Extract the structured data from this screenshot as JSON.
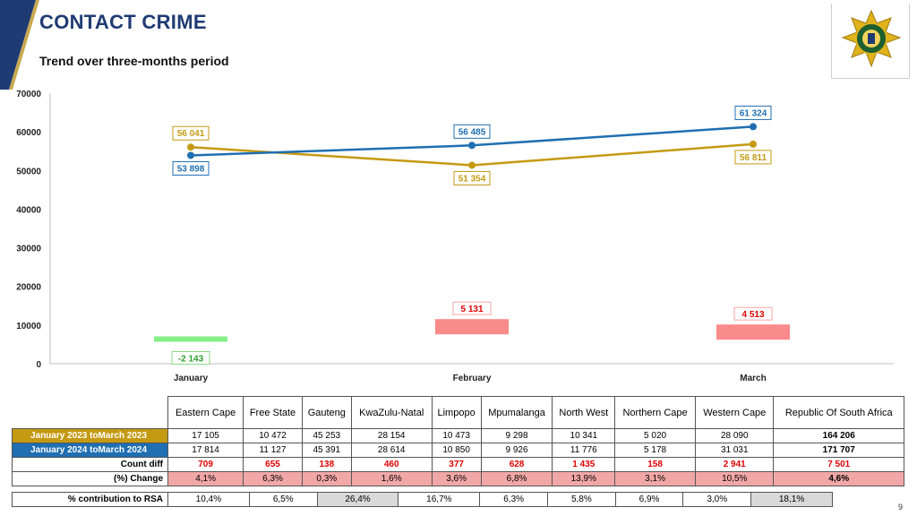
{
  "header": {
    "title": "CONTACT CRIME",
    "subtitle": "Trend over three-months period"
  },
  "colors": {
    "series_2023": "#c49a12",
    "series_2024": "#1f6fb2",
    "negative_bar": "#86ef86",
    "positive_bar": "#f98b8b"
  },
  "chart_data": {
    "type": "line",
    "categories": [
      "January",
      "February",
      "March"
    ],
    "ylim": [
      0,
      70000
    ],
    "yticks": [
      0,
      10000,
      20000,
      30000,
      40000,
      50000,
      60000,
      70000
    ],
    "series": [
      {
        "name": "January 2023 to March 2023",
        "values": [
          56041,
          51354,
          56811
        ],
        "labels": [
          "56 041",
          "51 354",
          "56 811"
        ]
      },
      {
        "name": "January 2024 to March 2024",
        "values": [
          53898,
          56485,
          61324
        ],
        "labels": [
          "53 898",
          "56 485",
          "61 324"
        ]
      }
    ],
    "differences": {
      "values": [
        -2143,
        5131,
        4513
      ],
      "labels": [
        "-2 143",
        "5 131",
        "4 513"
      ]
    }
  },
  "table": {
    "columns": [
      "Eastern Cape",
      "Free State",
      "Gauteng",
      "KwaZulu-Natal",
      "Limpopo",
      "Mpumalanga",
      "North West",
      "Northern Cape",
      "Western Cape",
      "Republic Of South Africa"
    ],
    "rows": [
      {
        "label": "January 2023 toMarch 2023",
        "values": [
          "17 105",
          "10 472",
          "45 253",
          "28 154",
          "10 473",
          "9 298",
          "10 341",
          "5 020",
          "28 090",
          "164 206"
        ]
      },
      {
        "label": "January 2024 toMarch 2024",
        "values": [
          "17 814",
          "11 127",
          "45 391",
          "28 614",
          "10 850",
          "9 926",
          "11 776",
          "5 178",
          "31 031",
          "171 707"
        ]
      },
      {
        "label": "Count diff",
        "values": [
          "709",
          "655",
          "138",
          "460",
          "377",
          "628",
          "1 435",
          "158",
          "2 941",
          "7 501"
        ]
      },
      {
        "label": "(%) Change",
        "values": [
          "4,1%",
          "6,3%",
          "0,3%",
          "1,6%",
          "3,6%",
          "6,8%",
          "13,9%",
          "3,1%",
          "10,5%",
          "4,6%"
        ]
      }
    ],
    "contribution": {
      "label": "% contribution to RSA",
      "values": [
        "10,4%",
        "6,5%",
        "26,4%",
        "16,7%",
        "6,3%",
        "5,8%",
        "6,9%",
        "3,0%",
        "18,1%"
      ]
    }
  },
  "page_number": "9"
}
